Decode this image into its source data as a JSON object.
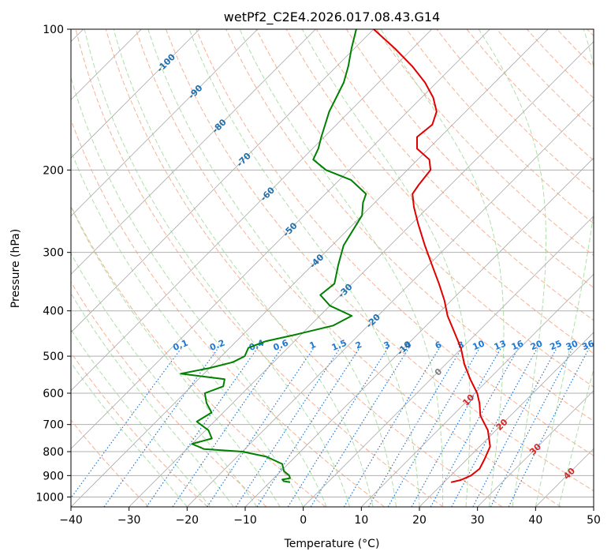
{
  "chart_data": {
    "type": "skew-t",
    "title": "wetPf2_C2E4.2026.017.08.43.G14",
    "xlabel": "Temperature (°C)",
    "ylabel": "Pressure (hPa)",
    "xlim": [
      -40,
      50
    ],
    "ylim": [
      1050,
      100
    ],
    "x_ticks": [
      -40,
      -30,
      -20,
      -10,
      0,
      10,
      20,
      30,
      40,
      50
    ],
    "y_ticks": [
      1000,
      900,
      800,
      700,
      600,
      500,
      400,
      300,
      200,
      100
    ],
    "temperature_profile": [
      {
        "p": 930,
        "t": 21.2
      },
      {
        "p": 920,
        "t": 22.5
      },
      {
        "p": 900,
        "t": 23.5
      },
      {
        "p": 870,
        "t": 23.8
      },
      {
        "p": 830,
        "t": 23.0
      },
      {
        "p": 780,
        "t": 21.8
      },
      {
        "p": 720,
        "t": 18.6
      },
      {
        "p": 670,
        "t": 14.8
      },
      {
        "p": 630,
        "t": 12.5
      },
      {
        "p": 600,
        "t": 10.4
      },
      {
        "p": 560,
        "t": 6.8
      },
      {
        "p": 520,
        "t": 3.2
      },
      {
        "p": 480,
        "t": -0.2
      },
      {
        "p": 440,
        "t": -4.5
      },
      {
        "p": 410,
        "t": -8.0
      },
      {
        "p": 380,
        "t": -11.2
      },
      {
        "p": 350,
        "t": -15.0
      },
      {
        "p": 320,
        "t": -19.3
      },
      {
        "p": 290,
        "t": -24.0
      },
      {
        "p": 260,
        "t": -29.0
      },
      {
        "p": 240,
        "t": -32.5
      },
      {
        "p": 225,
        "t": -35.0
      },
      {
        "p": 215,
        "t": -35.5
      },
      {
        "p": 200,
        "t": -36.0
      },
      {
        "p": 190,
        "t": -38.0
      },
      {
        "p": 180,
        "t": -42.0
      },
      {
        "p": 170,
        "t": -44.0
      },
      {
        "p": 160,
        "t": -43.5
      },
      {
        "p": 150,
        "t": -45.0
      },
      {
        "p": 140,
        "t": -48.0
      },
      {
        "p": 130,
        "t": -52.0
      },
      {
        "p": 120,
        "t": -57.0
      },
      {
        "p": 110,
        "t": -63.0
      },
      {
        "p": 100,
        "t": -70.0
      }
    ],
    "dewpoint_profile": [
      {
        "p": 930,
        "t": -6.5
      },
      {
        "p": 925,
        "t": -7.8
      },
      {
        "p": 918,
        "t": -8.3
      },
      {
        "p": 912,
        "t": -7.2
      },
      {
        "p": 900,
        "t": -7.8
      },
      {
        "p": 880,
        "t": -9.5
      },
      {
        "p": 850,
        "t": -11.0
      },
      {
        "p": 820,
        "t": -15.0
      },
      {
        "p": 800,
        "t": -20.0
      },
      {
        "p": 790,
        "t": -27.0
      },
      {
        "p": 770,
        "t": -30.0
      },
      {
        "p": 750,
        "t": -27.5
      },
      {
        "p": 720,
        "t": -29.5
      },
      {
        "p": 690,
        "t": -33.0
      },
      {
        "p": 660,
        "t": -32.0
      },
      {
        "p": 630,
        "t": -34.5
      },
      {
        "p": 600,
        "t": -36.5
      },
      {
        "p": 580,
        "t": -34.5
      },
      {
        "p": 560,
        "t": -35.5
      },
      {
        "p": 545,
        "t": -44.0
      },
      {
        "p": 530,
        "t": -40.0
      },
      {
        "p": 515,
        "t": -37.0
      },
      {
        "p": 500,
        "t": -36.0
      },
      {
        "p": 480,
        "t": -36.8
      },
      {
        "p": 465,
        "t": -35.0
      },
      {
        "p": 450,
        "t": -31.0
      },
      {
        "p": 430,
        "t": -26.0
      },
      {
        "p": 410,
        "t": -24.5
      },
      {
        "p": 390,
        "t": -30.0
      },
      {
        "p": 370,
        "t": -33.5
      },
      {
        "p": 350,
        "t": -33.0
      },
      {
        "p": 320,
        "t": -35.5
      },
      {
        "p": 290,
        "t": -38.0
      },
      {
        "p": 250,
        "t": -40.0
      },
      {
        "p": 235,
        "t": -42.0
      },
      {
        "p": 225,
        "t": -43.0
      },
      {
        "p": 210,
        "t": -48.0
      },
      {
        "p": 200,
        "t": -54.0
      },
      {
        "p": 190,
        "t": -58.0
      },
      {
        "p": 180,
        "t": -59.0
      },
      {
        "p": 170,
        "t": -60.5
      },
      {
        "p": 150,
        "t": -63.5
      },
      {
        "p": 130,
        "t": -66.0
      },
      {
        "p": 120,
        "t": -68.0
      },
      {
        "p": 110,
        "t": -70.5
      },
      {
        "p": 100,
        "t": -73.0
      }
    ],
    "isotherm_labels": [
      {
        "text": "-100",
        "p": 118,
        "t": -100
      },
      {
        "text": "-90",
        "p": 136,
        "t": -90
      },
      {
        "text": "-80",
        "p": 161,
        "t": -80
      },
      {
        "text": "-70",
        "p": 190,
        "t": -70
      },
      {
        "text": "-60",
        "p": 225,
        "t": -60
      },
      {
        "text": "-50",
        "p": 268,
        "t": -50
      },
      {
        "text": "-40",
        "p": 313,
        "t": -40
      },
      {
        "text": "-30",
        "p": 362,
        "t": -30
      },
      {
        "text": "-20",
        "p": 420,
        "t": -20
      },
      {
        "text": "-10",
        "p": 480,
        "t": -10
      },
      {
        "text": "0",
        "p": 540,
        "t": 0
      },
      {
        "text": "10",
        "p": 620,
        "t": 10
      },
      {
        "text": "20",
        "p": 700,
        "t": 20
      },
      {
        "text": "30",
        "p": 790,
        "t": 30
      },
      {
        "text": "40",
        "p": 890,
        "t": 40
      }
    ],
    "mixing_ratio_lines": [
      "0.1",
      "0.2",
      "0.4",
      "0.6",
      "1",
      "1.5",
      "2",
      "3",
      "4",
      "6",
      "8",
      "10",
      "13",
      "16",
      "20",
      "25",
      "30",
      "36"
    ],
    "mixing_ratio_label_p": 480,
    "colors": {
      "temperature": "#e00000",
      "dewpoint": "#008000",
      "isotherm": "#a9a9a9",
      "isobar": "#b0b0b0",
      "dry_adiabat": "#f4a582",
      "moist_adiabat": "#a6dba0",
      "mixing_ratio": "#1e78d4",
      "label_cold": "#1f6fae",
      "label_warm": "#d62728",
      "label_zero": "#808080"
    }
  }
}
